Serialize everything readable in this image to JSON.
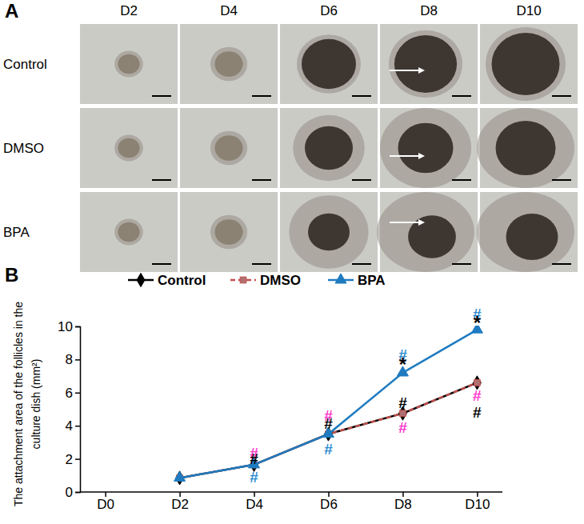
{
  "panel_a": {
    "label": "A",
    "columns": [
      "D2",
      "D4",
      "D6",
      "D8",
      "D10"
    ],
    "rows": [
      "Control",
      "DMSO",
      "BPA"
    ]
  },
  "chart_data": {
    "type": "line",
    "panel_label": "B",
    "y_label": [
      "The attachment area of the follicles in the",
      "culture dish (mm²)"
    ],
    "categories": [
      "D0",
      "D2",
      "D4",
      "D6",
      "D8",
      "D10"
    ],
    "series": [
      {
        "name": "Control",
        "color": "#000000",
        "marker": "diamond",
        "line_style": "solid",
        "values": [
          null,
          0.85,
          1.65,
          3.5,
          4.75,
          6.6
        ]
      },
      {
        "name": "DMSO",
        "color": "#c0504d",
        "marker": "square",
        "line_style": "dashed",
        "values": [
          null,
          0.85,
          1.65,
          3.5,
          4.75,
          6.6
        ]
      },
      {
        "name": "BPA",
        "color": "#1f7bc0",
        "marker": "triangle",
        "line_style": "solid",
        "values": [
          null,
          0.85,
          1.65,
          3.5,
          7.2,
          9.8
        ]
      }
    ],
    "ylim": [
      0,
      10
    ],
    "yticks": [
      0,
      2,
      4,
      6,
      8,
      10
    ],
    "legend": "top",
    "annotations": [
      {
        "text": "#",
        "x": "D4",
        "y": 2.35,
        "color": "#ff33cc"
      },
      {
        "text": "#",
        "x": "D4",
        "y": 2.0,
        "color": "#000000"
      },
      {
        "text": "#",
        "x": "D4",
        "y": 0.9,
        "color": "#2e8bd0"
      },
      {
        "text": "#",
        "x": "D6",
        "y": 4.6,
        "color": "#ff33cc"
      },
      {
        "text": "#",
        "x": "D6",
        "y": 4.15,
        "color": "#000000"
      },
      {
        "text": "#",
        "x": "D6",
        "y": 2.6,
        "color": "#2e8bd0"
      },
      {
        "text": "#",
        "x": "D8",
        "y": 8.3,
        "color": "#2e8bd0"
      },
      {
        "text": "*",
        "x": "D8",
        "y": 7.7,
        "color": "#000000"
      },
      {
        "text": "#",
        "x": "D8",
        "y": 5.4,
        "color": "#000000"
      },
      {
        "text": "#",
        "x": "D8",
        "y": 3.9,
        "color": "#ff33cc"
      },
      {
        "text": "#",
        "x": "D10",
        "y": 10.75,
        "color": "#2e8bd0"
      },
      {
        "text": "*",
        "x": "D10",
        "y": 10.2,
        "color": "#000000"
      },
      {
        "text": "#",
        "x": "D10",
        "y": 5.8,
        "color": "#ff33cc"
      },
      {
        "text": "#",
        "x": "D10",
        "y": 4.8,
        "color": "#000000"
      }
    ]
  }
}
